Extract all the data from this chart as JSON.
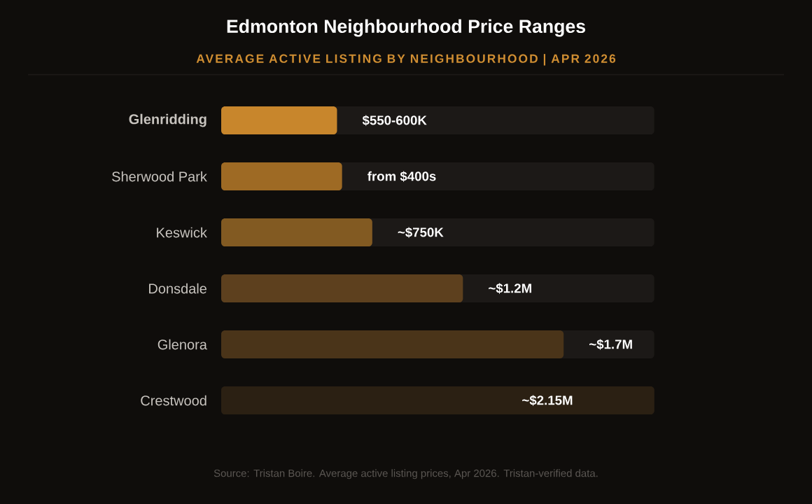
{
  "chart_data": {
    "type": "bar",
    "orientation": "horizontal",
    "xlim": [
      0,
      2150000
    ],
    "tick_labels": "y",
    "title": "Edmonton Neighbourhood Price Ranges",
    "subtitle": "AVERAGE ACTIVE LISTING BY NEIGHBOURHOOD | APR 2026",
    "categories": [
      "**Glenridding**",
      "Sherwood Park",
      "Keswick",
      "Donsdale",
      "Glenora",
      "Crestwood"
    ],
    "values": [
      575000,
      600000,
      750000,
      1200000,
      1700000,
      2150000
    ],
    "colors": [
      "#c8862c",
      "#9e6a24",
      "#825a22",
      "#5d401e",
      "#4a3419",
      "#2b2013"
    ],
    "value_labels": [
      "$550-600K",
      "from $400s",
      "~$750K",
      "~$1.2M",
      "~$1.7M",
      "~$2.15M"
    ],
    "annotations": [
      "Source: Tristan Boire. Average active listing prices, Apr 2026. Tristan-verified data."
    ]
  }
}
